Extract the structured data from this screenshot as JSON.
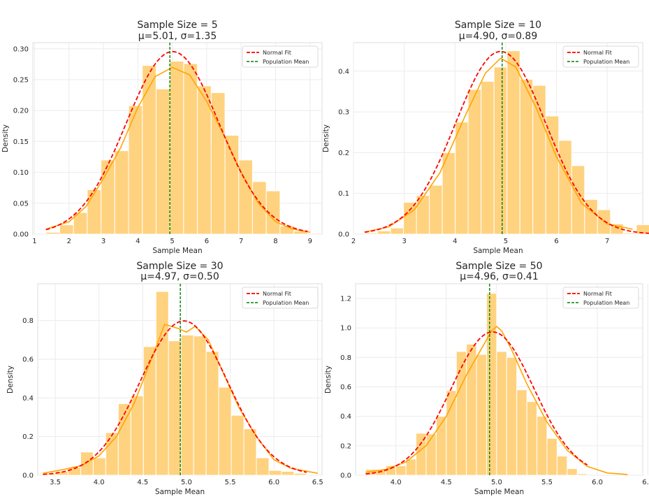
{
  "colors": {
    "bar_fill": "#ffd27f",
    "bar_edge": "#ffffff",
    "kde_line": "#ffa500",
    "normal_fit": "#ff0000",
    "population_mean": "#008000",
    "grid": "#ebebeb"
  },
  "chart_data": [
    {
      "type": "bar",
      "title": "Sample Size = 5",
      "subtitle": "μ=5.01, σ=1.35",
      "xlabel": "Sample Mean",
      "ylabel": "Density",
      "xlim": [
        0.95,
        9.35
      ],
      "ylim": [
        0,
        0.31
      ],
      "xticks": [
        1,
        2,
        3,
        4,
        5,
        6,
        7,
        8,
        9
      ],
      "yticks": [
        0.0,
        0.05,
        0.1,
        0.15,
        0.2,
        0.25,
        0.3
      ],
      "ytick_labels": [
        "0.00",
        "0.05",
        "0.10",
        "0.15",
        "0.20",
        "0.25",
        "0.30"
      ],
      "grid": true,
      "legend": {
        "placement": "top-right",
        "entries": [
          "Normal Fit",
          "Population Mean"
        ]
      },
      "bins": {
        "start": 1.33,
        "width": 0.4,
        "density": [
          0.003,
          0.015,
          0.035,
          0.072,
          0.12,
          0.135,
          0.208,
          0.273,
          0.235,
          0.28,
          0.276,
          0.24,
          0.229,
          0.16,
          0.12,
          0.085,
          0.07,
          0.013,
          0.005
        ]
      },
      "normal_fit": {
        "mu": 5.01,
        "sigma": 1.35
      },
      "population_mean": 4.93,
      "kde": {
        "x": [
          1.33,
          2.0,
          2.5,
          3.0,
          3.5,
          4.0,
          4.5,
          5.0,
          5.5,
          6.0,
          6.5,
          7.0,
          7.5,
          8.0,
          8.5,
          9.0
        ],
        "y": [
          0.008,
          0.02,
          0.045,
          0.09,
          0.14,
          0.205,
          0.255,
          0.27,
          0.258,
          0.215,
          0.16,
          0.1,
          0.05,
          0.02,
          0.008,
          0.003
        ]
      }
    },
    {
      "type": "bar",
      "title": "Sample Size = 10",
      "subtitle": "μ=4.90, σ=0.89",
      "xlabel": "Sample Mean",
      "ylabel": "Density",
      "xlim": [
        2.0,
        7.7
      ],
      "ylim": [
        0,
        0.47
      ],
      "xticks": [
        2,
        3,
        4,
        5,
        6,
        7
      ],
      "yticks": [
        0.0,
        0.1,
        0.2,
        0.3,
        0.4
      ],
      "ytick_labels": [
        "0.0",
        "0.1",
        "0.2",
        "0.3",
        "0.4"
      ],
      "grid": true,
      "legend": {
        "placement": "top-right",
        "entries": [
          "Normal Fit",
          "Population Mean"
        ]
      },
      "bins": {
        "start": 2.22,
        "width": 0.255,
        "density": [
          0.003,
          0.008,
          0.015,
          0.078,
          0.095,
          0.12,
          0.2,
          0.275,
          0.355,
          0.375,
          0.41,
          0.45,
          0.38,
          0.365,
          0.29,
          0.23,
          0.168,
          0.085,
          0.06,
          0.025,
          0.003,
          0.023
        ]
      },
      "normal_fit": {
        "mu": 4.9,
        "sigma": 0.89
      },
      "population_mean": 4.93,
      "kde": {
        "x": [
          2.22,
          2.7,
          3.2,
          3.7,
          4.2,
          4.6,
          4.9,
          5.2,
          5.6,
          6.0,
          6.5,
          7.0,
          7.5
        ],
        "y": [
          0.005,
          0.018,
          0.06,
          0.15,
          0.29,
          0.395,
          0.432,
          0.41,
          0.31,
          0.19,
          0.075,
          0.025,
          0.012
        ]
      }
    },
    {
      "type": "bar",
      "title": "Sample Size = 30",
      "subtitle": "μ=4.97, σ=0.50",
      "xlabel": "Sample Mean",
      "ylabel": "Density",
      "xlim": [
        3.3,
        6.55
      ],
      "ylim": [
        0,
        0.99
      ],
      "xticks": [
        3.5,
        4.0,
        4.5,
        5.0,
        5.5,
        6.0,
        6.5
      ],
      "xtick_labels": [
        "3.5",
        "4.0",
        "4.5",
        "5.0",
        "5.5",
        "6.0",
        "6.5"
      ],
      "yticks": [
        0.0,
        0.2,
        0.4,
        0.6,
        0.8
      ],
      "ytick_labels": [
        "0.0",
        "0.2",
        "0.4",
        "0.6",
        "0.8"
      ],
      "grid": true,
      "legend": {
        "placement": "top-right",
        "entries": [
          "Normal Fit",
          "Population Mean"
        ]
      },
      "bins": {
        "start": 3.36,
        "width": 0.1435,
        "density": [
          0.01,
          0.02,
          0.04,
          0.12,
          0.09,
          0.22,
          0.37,
          0.41,
          0.665,
          0.95,
          0.695,
          0.725,
          0.72,
          0.64,
          0.455,
          0.31,
          0.24,
          0.09,
          0.025,
          0.02,
          0.01
        ]
      },
      "normal_fit": {
        "mu": 4.97,
        "sigma": 0.5
      },
      "population_mean": 4.93,
      "kde": {
        "x": [
          3.36,
          3.6,
          3.8,
          4.0,
          4.2,
          4.4,
          4.6,
          4.75,
          4.9,
          5.0,
          5.1,
          5.25,
          5.4,
          5.6,
          5.8,
          6.0,
          6.2,
          6.5
        ],
        "y": [
          0.01,
          0.03,
          0.05,
          0.1,
          0.2,
          0.37,
          0.6,
          0.78,
          0.76,
          0.74,
          0.77,
          0.7,
          0.55,
          0.35,
          0.2,
          0.08,
          0.035,
          0.01
        ]
      }
    },
    {
      "type": "bar",
      "title": "Sample Size = 50",
      "subtitle": "μ=4.96, σ=0.41",
      "xlabel": "Sample Mean",
      "ylabel": "Density",
      "xlim": [
        3.6,
        6.45
      ],
      "ylim": [
        0,
        1.3
      ],
      "xticks": [
        4.0,
        4.5,
        5.0,
        5.5,
        6.0,
        6.5
      ],
      "xtick_labels": [
        "4.0",
        "4.5",
        "5.0",
        "5.5",
        "6.0",
        "6.5"
      ],
      "yticks": [
        0.0,
        0.2,
        0.4,
        0.6,
        0.8,
        1.0,
        1.2
      ],
      "ytick_labels": [
        "0.0",
        "0.2",
        "0.4",
        "0.6",
        "0.8",
        "1.0",
        "1.2"
      ],
      "grid": true,
      "legend": {
        "placement": "top-right",
        "entries": [
          "Normal Fit",
          "Population Mean"
        ]
      },
      "bins": {
        "start": 3.7,
        "width": 0.1,
        "density": [
          0.04,
          0.04,
          0.065,
          0.065,
          0.11,
          0.285,
          0.28,
          0.4,
          0.575,
          0.84,
          0.89,
          0.82,
          1.235,
          0.84,
          0.8,
          0.58,
          0.5,
          0.4,
          0.25,
          0.13,
          0.045,
          0.01
        ]
      },
      "normal_fit": {
        "mu": 4.96,
        "sigma": 0.41
      },
      "population_mean": 4.93,
      "kde": {
        "x": [
          3.7,
          3.9,
          4.1,
          4.3,
          4.5,
          4.7,
          4.85,
          4.95,
          5.0,
          5.05,
          5.15,
          5.3,
          5.5,
          5.7,
          5.9,
          6.1,
          6.3
        ],
        "y": [
          0.02,
          0.04,
          0.09,
          0.2,
          0.4,
          0.68,
          0.86,
          0.98,
          1.01,
          0.98,
          0.85,
          0.62,
          0.36,
          0.17,
          0.06,
          0.015,
          0.005
        ]
      }
    }
  ]
}
